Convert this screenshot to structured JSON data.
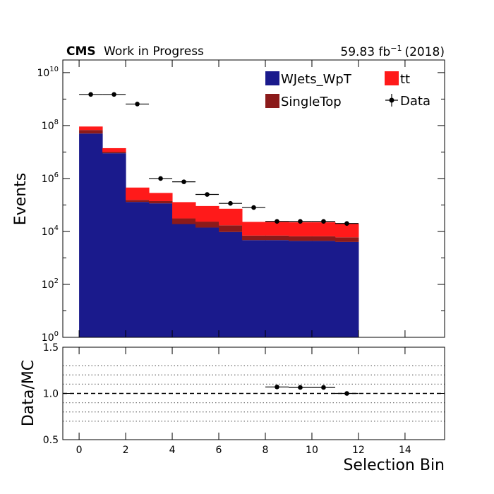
{
  "header": {
    "experiment": "CMS",
    "status": "Work in Progress",
    "lumi_value": "59.83 fb",
    "lumi_exp": "−1",
    "lumi_year": "(2018)"
  },
  "legend": {
    "items": [
      {
        "label": "WJets_WpT",
        "color": "#1a1a8c",
        "kind": "box"
      },
      {
        "label": "tt",
        "color": "#ff1a1a",
        "kind": "box"
      },
      {
        "label": "SingleTop",
        "color": "#8b1a1a",
        "kind": "box"
      },
      {
        "label": "Data",
        "color": "#000000",
        "kind": "marker"
      }
    ]
  },
  "chart_data": [
    {
      "type": "bar",
      "stacked": true,
      "scale": "log",
      "ylabel": "Events",
      "xlim": [
        -0.7,
        15.7
      ],
      "ylim": [
        1,
        30000000000
      ],
      "yticks": [
        1,
        100,
        10000,
        1000000,
        100000000,
        10000000000
      ],
      "ytick_labels": [
        {
          "base": "10",
          "exp": "0"
        },
        {
          "base": "10",
          "exp": "2"
        },
        {
          "base": "10",
          "exp": "4"
        },
        {
          "base": "10",
          "exp": "6"
        },
        {
          "base": "10",
          "exp": "8"
        },
        {
          "base": "10",
          "exp": "10"
        }
      ],
      "bin_edges": [
        0,
        1,
        2,
        3,
        4,
        5,
        6,
        7,
        8,
        9,
        10,
        11,
        12
      ],
      "series": [
        {
          "name": "WJets_WpT",
          "color": "#1a1a8c",
          "values": [
            50000000,
            9000000,
            130000,
            115000,
            19000,
            14000,
            9500,
            4700,
            4700,
            4400,
            4400,
            4000
          ]
        },
        {
          "name": "SingleTop",
          "color": "#8b1a1a",
          "values": [
            18000000,
            1200000,
            25000,
            25000,
            12000,
            9500,
            7500,
            2300,
            2300,
            2200,
            2200,
            2000
          ]
        },
        {
          "name": "tt",
          "color": "#ff1a1a",
          "values": [
            24000000,
            3800000,
            300000,
            145000,
            97000,
            68000,
            55000,
            16000,
            16000,
            15800,
            15800,
            14000
          ]
        }
      ],
      "data_points": {
        "name": "Data",
        "x": [
          0.5,
          1.5,
          2.5,
          3.5,
          4.5,
          5.5,
          6.5,
          7.5,
          8.5,
          9.5,
          10.5,
          11.5
        ],
        "y": [
          1500000000,
          1500000000,
          650000000,
          1000000,
          750000,
          250000,
          115000,
          80000,
          24000,
          24000,
          24000,
          20000
        ]
      }
    },
    {
      "type": "scatter",
      "xlabel": "Selection Bin",
      "ylabel": "Data/MC",
      "xlim": [
        -0.7,
        15.7
      ],
      "ylim": [
        0.5,
        1.5
      ],
      "xticks": [
        0,
        2,
        4,
        6,
        8,
        10,
        12,
        14
      ],
      "yticks": [
        0.5,
        1.0,
        1.5
      ],
      "ytick_labels": [
        "0.5",
        "1.0",
        "1.5"
      ],
      "grid_lines": [
        0.7,
        0.8,
        0.9,
        1.1,
        1.2,
        1.3
      ],
      "reference_line": 1.0,
      "points": {
        "x": [
          8.5,
          9.5,
          10.5,
          11.5
        ],
        "y": [
          1.07,
          1.065,
          1.065,
          1.0
        ]
      }
    }
  ]
}
